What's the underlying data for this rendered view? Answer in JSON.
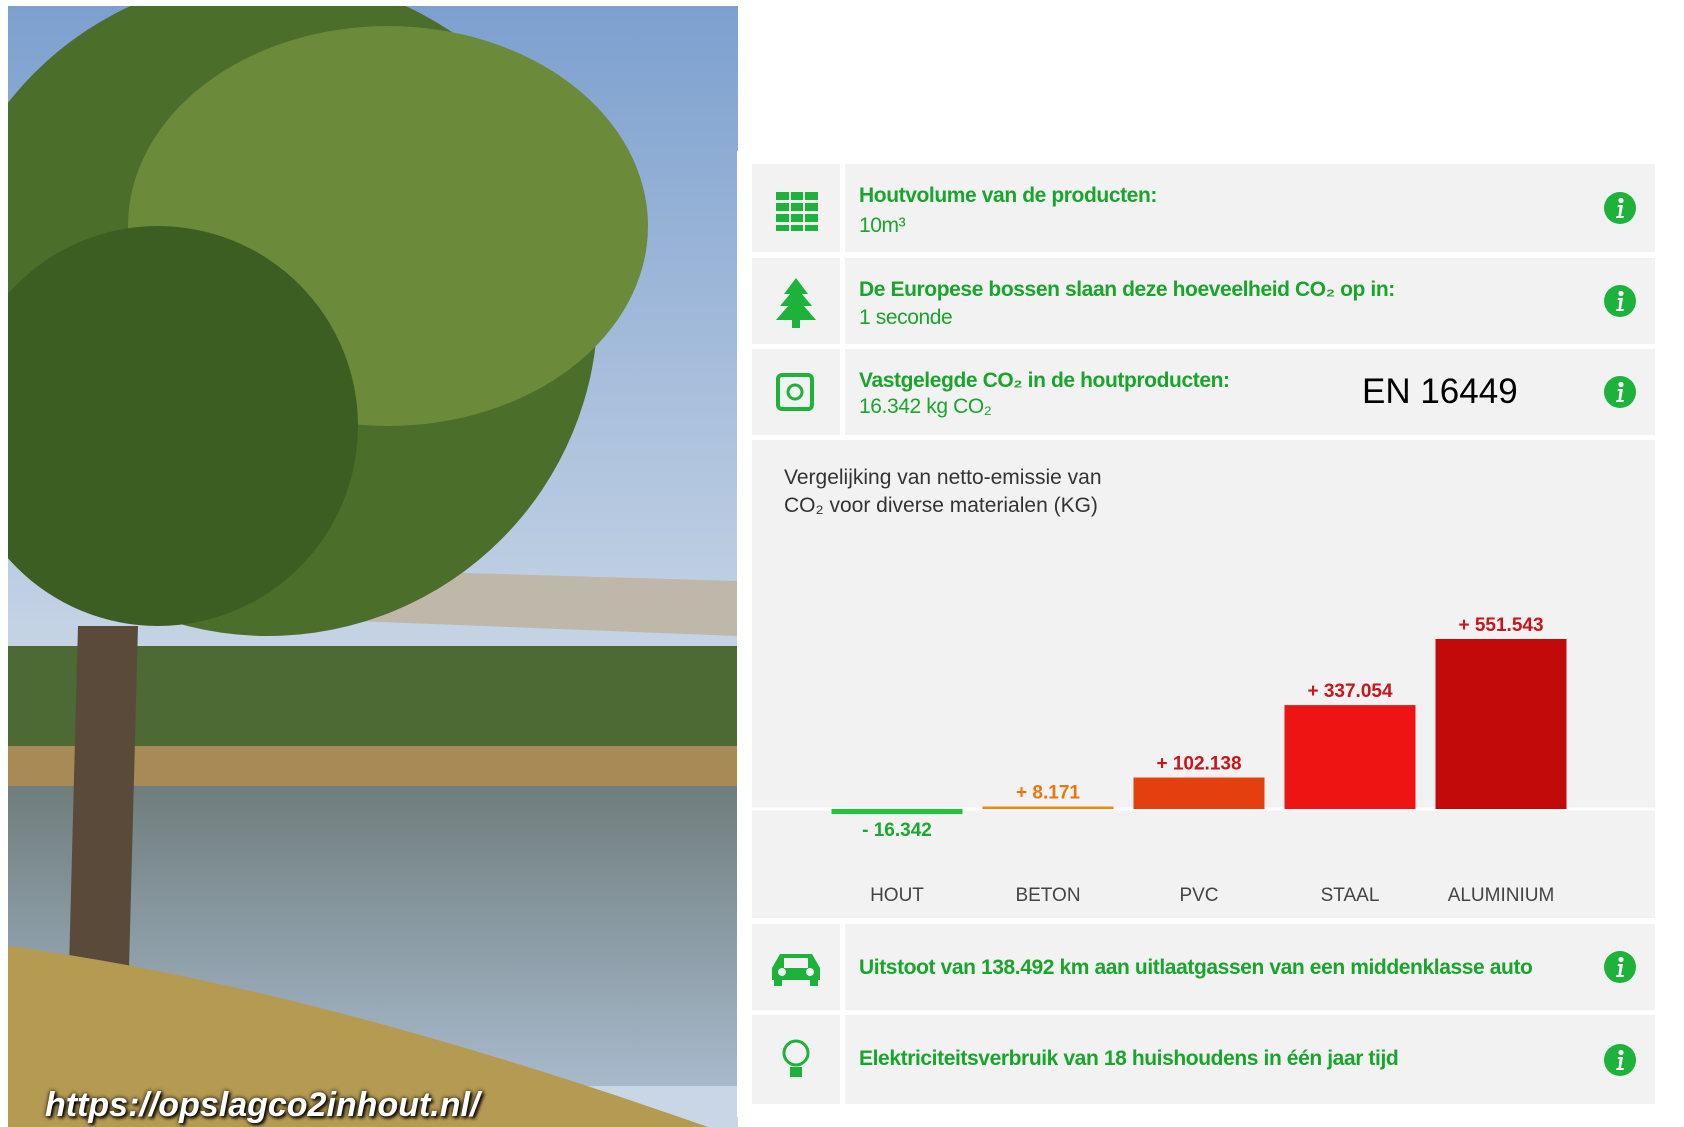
{
  "url": "https://opslagco2inhout.nl/",
  "panel": {
    "rows": [
      {
        "label": "Houtvolume van de producten:",
        "value": "10m³"
      },
      {
        "label": "De Europese bossen slaan deze hoeveelheid CO₂ op in:",
        "value": "1 seconde"
      },
      {
        "label": "Vastgelegde CO₂ in de houtproducten:",
        "value": "16.342 kg CO₂"
      }
    ],
    "badge": "EN 16449",
    "bottom_rows": [
      {
        "text": "Uitstoot van 138.492 km aan uitlaatgassen van een middenklasse auto"
      },
      {
        "text": "Elektriciteitsverbruik van 18 huishoudens in één jaar tijd"
      }
    ]
  },
  "chart_data": {
    "type": "bar",
    "title": [
      "Vergelijking van netto-emissie van",
      "CO₂ voor diverse materialen (KG)"
    ],
    "categories": [
      "HOUT",
      "BETON",
      "PVC",
      "STAAL",
      "ALUMINIUM"
    ],
    "values": [
      -16342,
      8171,
      102138,
      337054,
      551543
    ],
    "value_labels": [
      "- 16.342",
      "+ 8.171",
      "+ 102.138",
      "+ 337.054",
      "+ 551.543"
    ],
    "colors": [
      "#22c43a",
      "#f08a10",
      "#e4400f",
      "#ee1414",
      "#c20a0a"
    ]
  }
}
